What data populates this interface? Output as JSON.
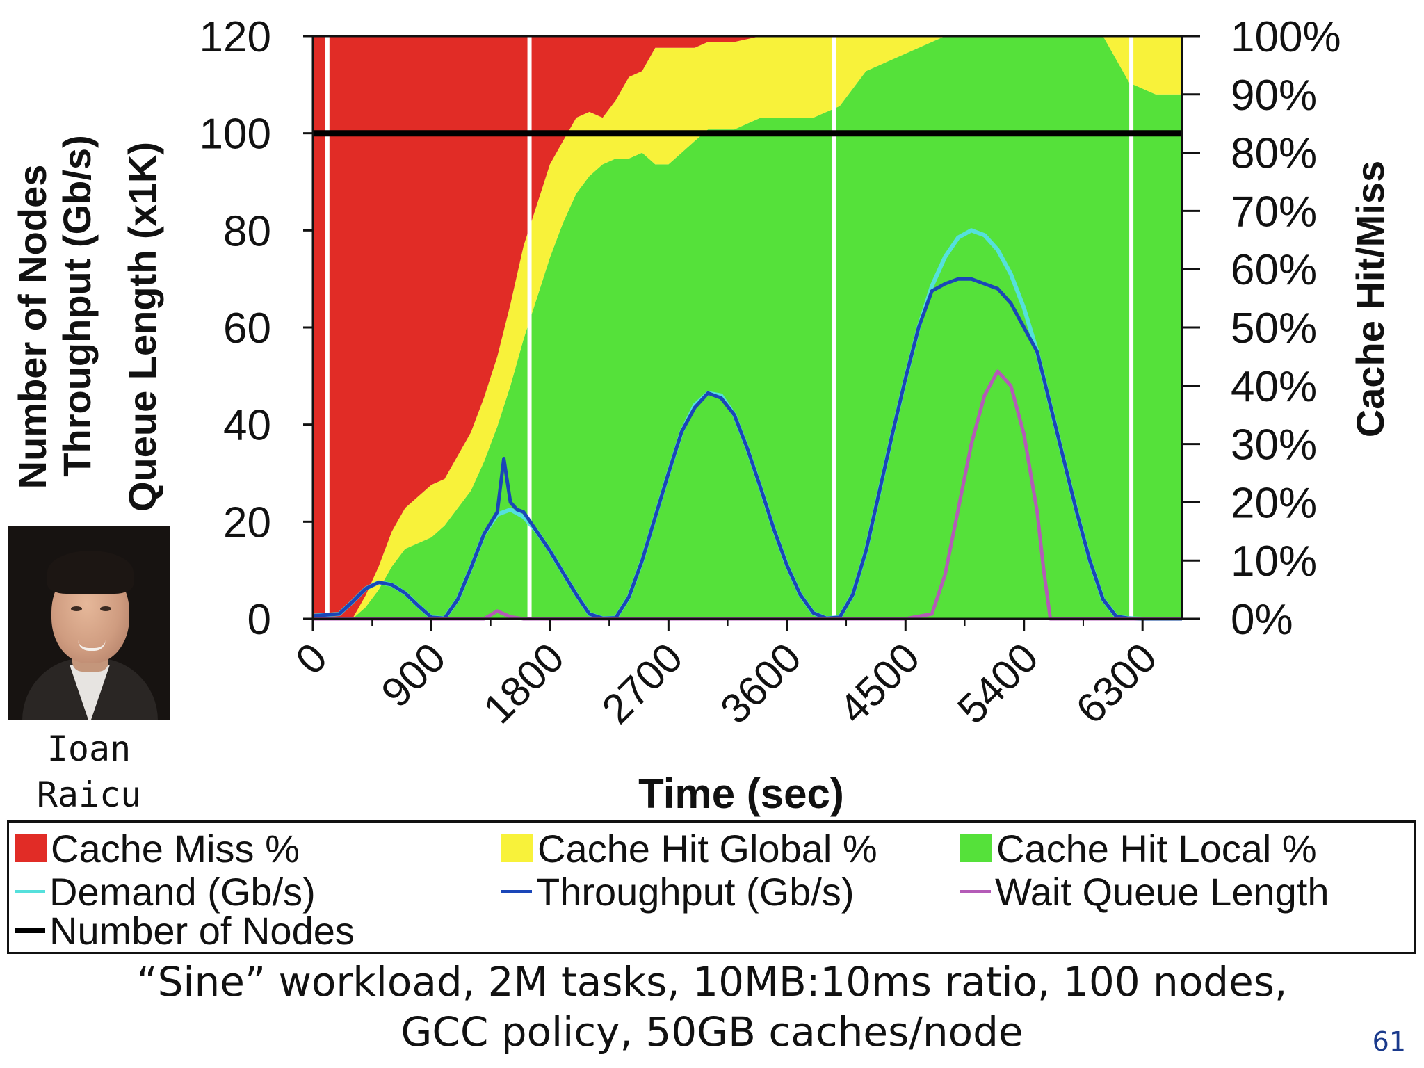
{
  "chart_data": {
    "type": "area",
    "x_axis": {
      "label": "Time (sec)",
      "ticks": [
        "0",
        "900",
        "1800",
        "2700",
        "3600",
        "4500",
        "5400",
        "6300"
      ],
      "range": [
        0,
        6600
      ]
    },
    "y_axis_left": {
      "label_lines": [
        "Number of Nodes",
        "Throughput (Gb/s)",
        "Queue Length (x1K)"
      ],
      "ticks": [
        "0",
        "20",
        "40",
        "60",
        "80",
        "100",
        "120"
      ],
      "range": [
        0,
        120
      ]
    },
    "y_axis_right": {
      "label": "Cache Hit/Miss",
      "ticks": [
        "0%",
        "10%",
        "20%",
        "30%",
        "40%",
        "50%",
        "60%",
        "70%",
        "80%",
        "90%",
        "100%"
      ],
      "range": [
        0,
        100
      ]
    },
    "stacked_area_percent": {
      "x": [
        0,
        100,
        200,
        300,
        400,
        500,
        600,
        700,
        800,
        900,
        1000,
        1100,
        1200,
        1300,
        1400,
        1500,
        1600,
        1700,
        1800,
        1900,
        2000,
        2100,
        2200,
        2300,
        2400,
        2500,
        2600,
        2700,
        2800,
        2900,
        3000,
        3200,
        3400,
        3600,
        3800,
        4000,
        4200,
        4400,
        4600,
        4800,
        5000,
        5200,
        5400,
        5600,
        5800,
        6000,
        6200,
        6400,
        6600
      ],
      "series": [
        {
          "name": "Cache Hit Local %",
          "values": [
            0,
            0,
            0,
            0,
            2,
            5,
            9,
            12,
            13,
            14,
            16,
            19,
            22,
            27,
            33,
            40,
            48,
            55,
            62,
            68,
            73,
            76,
            78,
            79,
            79,
            80,
            78,
            78,
            80,
            82,
            84,
            84,
            86,
            86,
            86,
            88,
            94,
            96,
            98,
            100,
            100,
            100,
            100,
            100,
            100,
            100,
            92,
            90,
            90
          ]
        },
        {
          "name": "Cache Hit Global %",
          "values": [
            0,
            0,
            0,
            0,
            2,
            4,
            6,
            7,
            8,
            9,
            8,
            9,
            10,
            11,
            12,
            14,
            16,
            16,
            16,
            14,
            13,
            11,
            8,
            10,
            14,
            14,
            20,
            20,
            18,
            16,
            15,
            15,
            14,
            14,
            14,
            12,
            6,
            4,
            2,
            0,
            0,
            0,
            0,
            0,
            0,
            0,
            8,
            10,
            10
          ]
        },
        {
          "name": "Cache Miss %",
          "values": [
            100,
            100,
            100,
            100,
            96,
            91,
            85,
            81,
            79,
            77,
            76,
            72,
            68,
            62,
            55,
            46,
            36,
            29,
            22,
            18,
            14,
            13,
            14,
            11,
            7,
            6,
            2,
            2,
            2,
            2,
            1,
            1,
            0,
            0,
            0,
            0,
            0,
            0,
            0,
            0,
            0,
            0,
            0,
            0,
            0,
            0,
            0,
            0,
            0
          ]
        }
      ]
    },
    "lines": [
      {
        "name": "Demand (Gb/s)",
        "x": [
          0,
          100,
          200,
          300,
          400,
          500,
          600,
          700,
          800,
          900,
          1000,
          1100,
          1200,
          1300,
          1400,
          1500,
          1600,
          1700,
          1800,
          1900,
          2000,
          2100,
          2200,
          2300,
          2400,
          2500,
          2600,
          2700,
          2800,
          2900,
          3000,
          3100,
          3200,
          3300,
          3400,
          3500,
          3600,
          3700,
          3800,
          3900,
          4000,
          4100,
          4200,
          4300,
          4400,
          4500,
          4600,
          4700,
          4800,
          4900,
          5000,
          5100,
          5200,
          5300,
          5400,
          5500,
          5600,
          5700,
          5800,
          5900,
          6000,
          6100,
          6200,
          6300,
          6400,
          6500,
          6600
        ],
        "values": [
          0.6,
          0.8,
          1.0,
          3.5,
          6.2,
          7.5,
          7.0,
          5.3,
          2.7,
          0.3,
          0.1,
          4.0,
          10.5,
          17.5,
          21.5,
          22.5,
          21.0,
          18.0,
          14.0,
          9.5,
          5.0,
          1.0,
          0.1,
          0.2,
          4.5,
          12.0,
          21.0,
          30.0,
          38.5,
          44.0,
          46.5,
          46.0,
          42.0,
          35.0,
          27.0,
          18.5,
          11.0,
          5.0,
          1.2,
          0.1,
          0.3,
          5.0,
          14.0,
          26.0,
          38.0,
          49.5,
          60.0,
          68.5,
          74.5,
          78.5,
          80.0,
          79.0,
          76.0,
          71.0,
          64.0,
          55.0,
          44.0,
          33.0,
          22.0,
          12.0,
          4.0,
          0.5,
          0.1,
          0,
          0,
          0,
          0
        ]
      },
      {
        "name": "Throughput (Gb/s)",
        "x": [
          0,
          100,
          200,
          300,
          400,
          500,
          600,
          700,
          800,
          900,
          1000,
          1100,
          1200,
          1300,
          1400,
          1450,
          1500,
          1550,
          1600,
          1700,
          1800,
          1900,
          2000,
          2100,
          2200,
          2300,
          2400,
          2500,
          2600,
          2700,
          2800,
          2900,
          3000,
          3100,
          3200,
          3300,
          3400,
          3500,
          3600,
          3700,
          3800,
          3900,
          4000,
          4100,
          4200,
          4300,
          4400,
          4500,
          4600,
          4700,
          4800,
          4900,
          5000,
          5100,
          5200,
          5300,
          5400,
          5500,
          5600,
          5700,
          5800,
          5900,
          6000,
          6100,
          6200,
          6300
        ],
        "values": [
          0.6,
          0.8,
          1.0,
          3.5,
          6.2,
          7.5,
          7.0,
          5.3,
          2.7,
          0.3,
          0.1,
          4.0,
          10.5,
          17.5,
          22.0,
          33.0,
          24.0,
          22.5,
          22.0,
          18.0,
          14.0,
          9.5,
          5.0,
          1.0,
          0.1,
          0.2,
          4.5,
          12.0,
          21.0,
          30.0,
          38.5,
          43.5,
          46.5,
          45.5,
          42.0,
          35.0,
          27.0,
          18.5,
          11.0,
          5.0,
          1.2,
          0.1,
          0.3,
          5.0,
          14.0,
          26.0,
          38.0,
          49.5,
          60.0,
          67.5,
          69.0,
          70.0,
          70.0,
          69.0,
          68.0,
          65.0,
          60.0,
          55.0,
          44.0,
          33.0,
          22.0,
          12.0,
          4.0,
          0.5,
          0.1,
          0
        ]
      },
      {
        "name": "Wait Queue Length",
        "x": [
          0,
          1300,
          1400,
          1500,
          1600,
          4500,
          4700,
          4800,
          5000,
          5100,
          5200,
          5300,
          5400,
          5500,
          5550,
          5600,
          6600
        ],
        "values": [
          0,
          0,
          1.6,
          0.4,
          0,
          0,
          1.0,
          9.0,
          36.0,
          46.0,
          51.0,
          48.0,
          38.0,
          22.0,
          10.0,
          0,
          0
        ]
      },
      {
        "name": "Number of Nodes",
        "x": [
          0,
          6600
        ],
        "values": [
          100,
          100
        ]
      }
    ]
  },
  "legend": {
    "cache_miss": "Cache Miss %",
    "cache_hit_global": "Cache Hit Global %",
    "cache_hit_local": "Cache Hit Local %",
    "demand": "Demand (Gb/s)",
    "throughput": "Throughput (Gb/s)",
    "wait_queue": "Wait Queue Length",
    "num_nodes": "Number of Nodes"
  },
  "colors": {
    "cache_miss": "#e12c26",
    "cache_hit_global": "#f8f23a",
    "cache_hit_local": "#55e13a",
    "demand": "#55e0dc",
    "throughput": "#1a46b8",
    "wait_queue": "#b45bb7",
    "num_nodes": "#000000",
    "page_number": "#1a3a8c"
  },
  "presenter": {
    "first_name": "Ioan",
    "last_name": "Raicu"
  },
  "caption": {
    "line1": "“Sine” workload, 2M tasks, 10MB:10ms ratio, 100 nodes,",
    "line2": "GCC policy, 50GB caches/node"
  },
  "page_number": "61"
}
